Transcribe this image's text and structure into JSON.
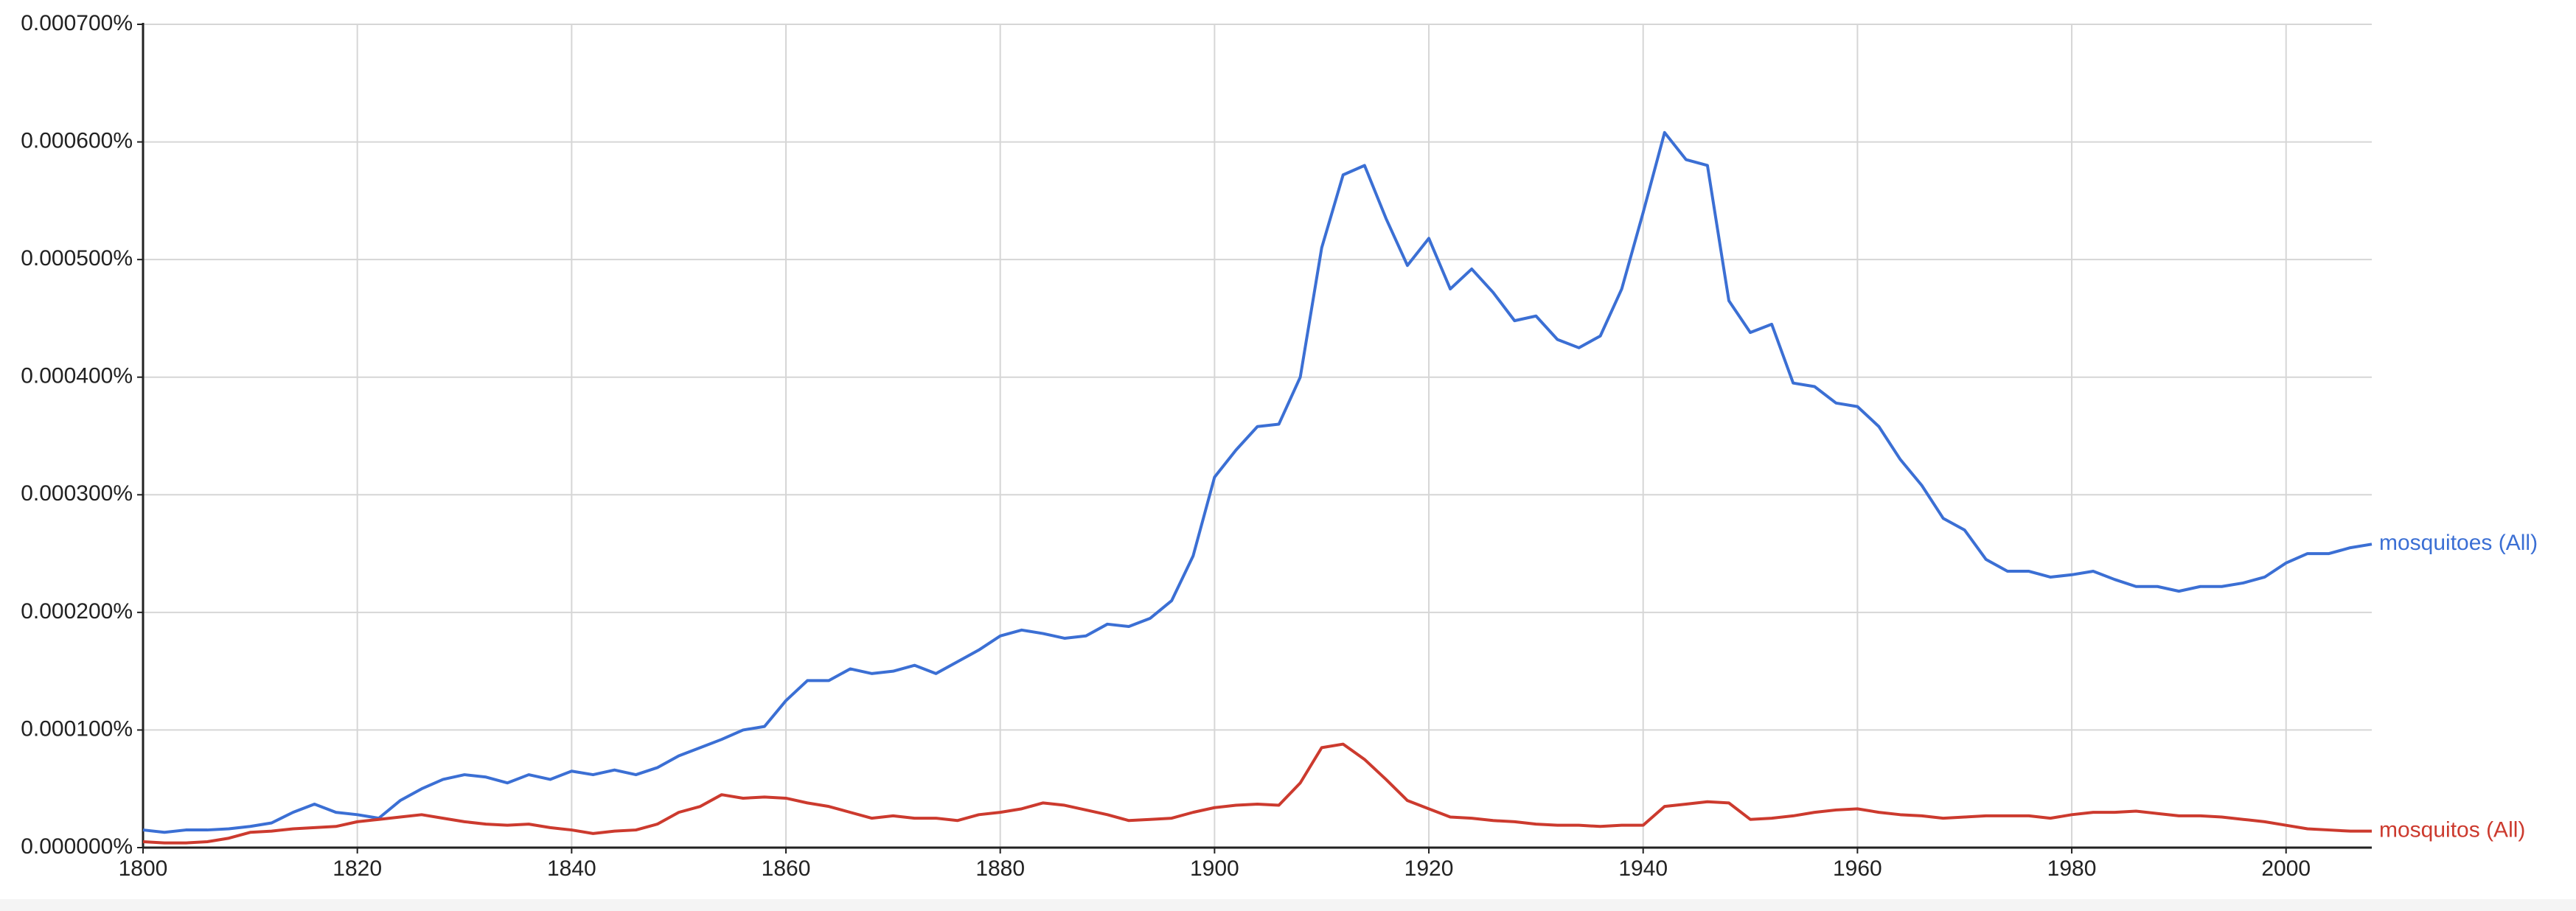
{
  "chart_data": {
    "type": "line",
    "x": [
      1800,
      1802,
      1804,
      1806,
      1808,
      1810,
      1812,
      1814,
      1816,
      1818,
      1820,
      1822,
      1824,
      1826,
      1828,
      1830,
      1832,
      1834,
      1836,
      1838,
      1840,
      1842,
      1844,
      1846,
      1848,
      1850,
      1852,
      1854,
      1856,
      1858,
      1860,
      1862,
      1864,
      1866,
      1868,
      1870,
      1872,
      1874,
      1876,
      1878,
      1880,
      1882,
      1884,
      1886,
      1888,
      1890,
      1892,
      1894,
      1896,
      1898,
      1900,
      1902,
      1904,
      1906,
      1908,
      1910,
      1912,
      1914,
      1916,
      1918,
      1920,
      1922,
      1924,
      1926,
      1928,
      1930,
      1932,
      1934,
      1936,
      1938,
      1940,
      1942,
      1944,
      1946,
      1948,
      1950,
      1952,
      1954,
      1956,
      1958,
      1960,
      1962,
      1964,
      1966,
      1968,
      1970,
      1972,
      1974,
      1976,
      1978,
      1980,
      1982,
      1984,
      1986,
      1988,
      1990,
      1992,
      1994,
      1996,
      1998,
      2000,
      2002,
      2004,
      2006,
      2008
    ],
    "series": [
      {
        "name": "mosquitoes (All)",
        "color": "#3b6fd4",
        "values": [
          1.5e-05,
          1.3e-05,
          1.5e-05,
          1.5e-05,
          1.6e-05,
          1.8e-05,
          2.1e-05,
          3e-05,
          3.7e-05,
          3e-05,
          2.8e-05,
          2.5e-05,
          4e-05,
          5e-05,
          5.8e-05,
          6.2e-05,
          6e-05,
          5.5e-05,
          6.2e-05,
          5.8e-05,
          6.5e-05,
          6.2e-05,
          6.6e-05,
          6.2e-05,
          6.8e-05,
          7.8e-05,
          8.5e-05,
          9.2e-05,
          0.0001,
          0.000103,
          0.000125,
          0.000142,
          0.000142,
          0.000152,
          0.000148,
          0.00015,
          0.000155,
          0.000148,
          0.000158,
          0.000168,
          0.00018,
          0.000185,
          0.000182,
          0.000178,
          0.00018,
          0.00019,
          0.000188,
          0.000195,
          0.00021,
          0.000248,
          0.000315,
          0.000338,
          0.000358,
          0.00036,
          0.0004,
          0.00051,
          0.000572,
          0.00058,
          0.000535,
          0.000495,
          0.000518,
          0.000475,
          0.000492,
          0.000472,
          0.000448,
          0.000452,
          0.000432,
          0.000425,
          0.000435,
          0.000475,
          0.00054,
          0.000608,
          0.000585,
          0.00058,
          0.000465,
          0.000438,
          0.000445,
          0.000395,
          0.000392,
          0.000378,
          0.000375,
          0.000358,
          0.00033,
          0.000308,
          0.00028,
          0.00027,
          0.000245,
          0.000235,
          0.000235,
          0.00023,
          0.000232,
          0.000235,
          0.000228,
          0.000222,
          0.000222,
          0.000218,
          0.000222,
          0.000222,
          0.000225,
          0.00023,
          0.000242,
          0.00025,
          0.00025,
          0.000255,
          0.000258
        ]
      },
      {
        "name": "mosquitos (All)",
        "color": "#cc3a2e",
        "values": [
          5e-06,
          4e-06,
          4e-06,
          5e-06,
          8e-06,
          1.3e-05,
          1.4e-05,
          1.6e-05,
          1.7e-05,
          1.8e-05,
          2.2e-05,
          2.4e-05,
          2.6e-05,
          2.8e-05,
          2.5e-05,
          2.2e-05,
          2e-05,
          1.9e-05,
          2e-05,
          1.7e-05,
          1.5e-05,
          1.2e-05,
          1.4e-05,
          1.5e-05,
          2e-05,
          3e-05,
          3.5e-05,
          4.5e-05,
          4.2e-05,
          4.3e-05,
          4.2e-05,
          3.8e-05,
          3.5e-05,
          3e-05,
          2.5e-05,
          2.7e-05,
          2.5e-05,
          2.5e-05,
          2.3e-05,
          2.8e-05,
          3e-05,
          3.3e-05,
          3.8e-05,
          3.6e-05,
          3.2e-05,
          2.8e-05,
          2.3e-05,
          2.4e-05,
          2.5e-05,
          3e-05,
          3.4e-05,
          3.6e-05,
          3.7e-05,
          3.6e-05,
          5.5e-05,
          8.5e-05,
          8.8e-05,
          7.5e-05,
          5.8e-05,
          4e-05,
          3.3e-05,
          2.6e-05,
          2.5e-05,
          2.3e-05,
          2.2e-05,
          2e-05,
          1.9e-05,
          1.9e-05,
          1.8e-05,
          1.9e-05,
          1.9e-05,
          3.5e-05,
          3.7e-05,
          3.9e-05,
          3.8e-05,
          2.4e-05,
          2.5e-05,
          2.7e-05,
          3e-05,
          3.2e-05,
          3.3e-05,
          3e-05,
          2.8e-05,
          2.7e-05,
          2.5e-05,
          2.6e-05,
          2.7e-05,
          2.7e-05,
          2.7e-05,
          2.5e-05,
          2.8e-05,
          3e-05,
          3e-05,
          3.1e-05,
          2.9e-05,
          2.7e-05,
          2.7e-05,
          2.6e-05,
          2.4e-05,
          2.2e-05,
          1.9e-05,
          1.6e-05,
          1.5e-05,
          1.4e-05,
          1.4e-05
        ]
      }
    ],
    "xlim": [
      1800,
      2008
    ],
    "ylim": [
      0,
      0.0007
    ],
    "xticks": [
      1800,
      1820,
      1840,
      1860,
      1880,
      1900,
      1920,
      1940,
      1960,
      1980,
      2000
    ],
    "yticks": [
      {
        "value": 0,
        "label": "0.000000%"
      },
      {
        "value": 0.0001,
        "label": "0.000100%"
      },
      {
        "value": 0.0002,
        "label": "0.000200%"
      },
      {
        "value": 0.0003,
        "label": "0.000300%"
      },
      {
        "value": 0.0004,
        "label": "0.000400%"
      },
      {
        "value": 0.0005,
        "label": "0.000500%"
      },
      {
        "value": 0.0006,
        "label": "0.000600%"
      },
      {
        "value": 0.0007,
        "label": "0.000700%"
      }
    ],
    "grid": true
  }
}
